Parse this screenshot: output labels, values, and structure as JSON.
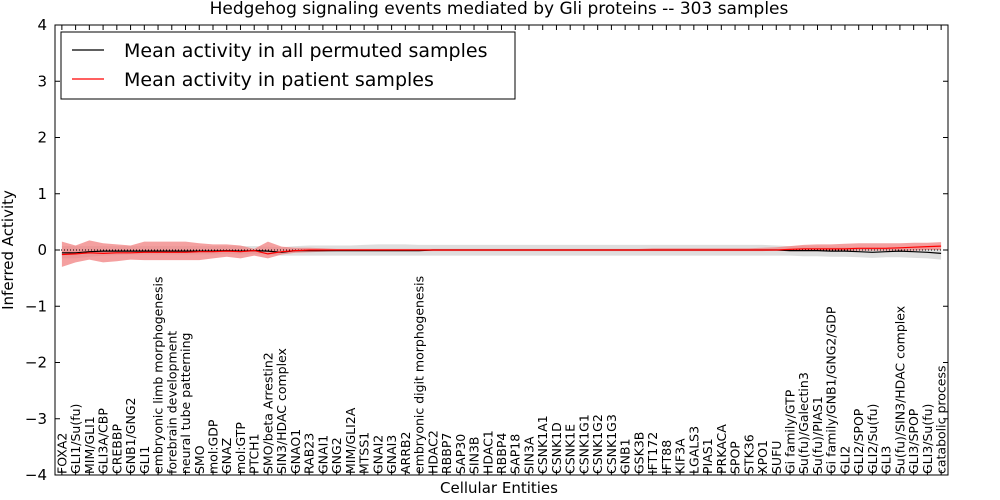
{
  "chart_data": {
    "type": "line",
    "title": "Hedgehog signaling events mediated by Gli proteins -- 303 samples",
    "xlabel": "Cellular Entities",
    "ylabel": "Inferred Activity",
    "ylim": [
      -4,
      4
    ],
    "yticks": [
      "4",
      "3",
      "2",
      "1",
      "0",
      "−1",
      "−2",
      "−3",
      "−4"
    ],
    "ytick_values": [
      4,
      3,
      2,
      1,
      0,
      -1,
      -2,
      -3,
      -4
    ],
    "legend_position": "upper-left",
    "categories": [
      "FOXA2",
      "GLI1/Su(fu)",
      "MIM/GLI1",
      "GLI3A/CBP",
      "CREBBP",
      "GNB1/GNG2",
      "GLI1",
      "embryonic limb morphogenesis",
      "forebrain development",
      "neural tube patterning",
      "SMO",
      "mol:GDP",
      "GNAZ",
      "mol:GTP",
      "PTCH1",
      "SMO/beta Arrestin2",
      "SIN3/HDAC complex",
      "GNAO1",
      "RAB23",
      "GNAI1",
      "GNG2",
      "MIM/GLI2A",
      "MTSS1",
      "GNAI2",
      "GNAI3",
      "ARRB2",
      "embryonic digit morphogenesis",
      "HDAC2",
      "RBBP7",
      "SAP30",
      "SIN3B",
      "HDAC1",
      "RBBP4",
      "SAP18",
      "SIN3A",
      "CSNK1A1",
      "CSNK1D",
      "CSNK1E",
      "CSNK1G1",
      "CSNK1G2",
      "CSNK1G3",
      "GNB1",
      "GSK3B",
      "IFT172",
      "IFT88",
      "KIF3A",
      "LGALS3",
      "PIAS1",
      "PRKACA",
      "SPOP",
      "STK36",
      "XPO1",
      "SUFU",
      "Gi family/GTP",
      "Su(fu)/Galectin3",
      "Su(fu)/PIAS1",
      "Gi family/GNB1/GNG2/GDP",
      "GLI2",
      "GLI2/SPOP",
      "GLI2/Su(fu)",
      "GLI3",
      "Su(fu)/SIN3/HDAC complex",
      "GLI3/SPOP",
      "GLI3/Su(fu)",
      "catabolic process"
    ],
    "series": [
      {
        "name": "Mean activity in all permuted samples",
        "color": "#000000",
        "values": [
          -0.05,
          -0.05,
          -0.03,
          -0.02,
          -0.02,
          -0.02,
          -0.02,
          -0.02,
          -0.02,
          -0.02,
          -0.02,
          -0.02,
          -0.01,
          -0.02,
          -0.01,
          -0.02,
          -0.04,
          -0.01,
          -0.01,
          -0.01,
          -0.01,
          -0.01,
          -0.01,
          -0.01,
          -0.01,
          -0.01,
          -0.01,
          0.0,
          0.0,
          0.0,
          0.0,
          0.0,
          0.0,
          0.0,
          0.0,
          0.0,
          0.0,
          0.0,
          0.0,
          0.0,
          0.0,
          0.0,
          0.0,
          0.0,
          0.0,
          0.0,
          0.0,
          0.0,
          0.0,
          0.0,
          0.0,
          0.0,
          0.0,
          -0.01,
          -0.01,
          -0.01,
          -0.02,
          -0.02,
          -0.03,
          -0.04,
          -0.03,
          -0.02,
          -0.03,
          -0.04,
          -0.06
        ],
        "band_lower": [
          -0.15,
          -0.15,
          -0.12,
          -0.1,
          -0.09,
          -0.08,
          -0.08,
          -0.08,
          -0.08,
          -0.08,
          -0.08,
          -0.08,
          -0.07,
          -0.08,
          -0.07,
          -0.08,
          -0.1,
          -0.1,
          -0.1,
          -0.1,
          -0.1,
          -0.1,
          -0.1,
          -0.1,
          -0.1,
          -0.1,
          -0.1,
          -0.1,
          -0.1,
          -0.1,
          -0.1,
          -0.1,
          -0.1,
          -0.1,
          -0.1,
          -0.1,
          -0.1,
          -0.1,
          -0.1,
          -0.1,
          -0.1,
          -0.1,
          -0.1,
          -0.1,
          -0.1,
          -0.1,
          -0.1,
          -0.1,
          -0.1,
          -0.1,
          -0.1,
          -0.1,
          -0.1,
          -0.1,
          -0.11,
          -0.11,
          -0.12,
          -0.12,
          -0.13,
          -0.14,
          -0.13,
          -0.13,
          -0.14,
          -0.15,
          -0.17
        ],
        "band_upper": [
          0.07,
          0.07,
          0.07,
          0.07,
          0.07,
          0.07,
          0.07,
          0.07,
          0.07,
          0.07,
          0.07,
          0.07,
          0.07,
          0.07,
          0.07,
          0.06,
          0.05,
          0.07,
          0.08,
          0.08,
          0.08,
          0.08,
          0.09,
          0.1,
          0.1,
          0.1,
          0.09,
          0.09,
          0.09,
          0.09,
          0.09,
          0.09,
          0.09,
          0.09,
          0.09,
          0.09,
          0.09,
          0.09,
          0.09,
          0.09,
          0.09,
          0.09,
          0.09,
          0.09,
          0.09,
          0.09,
          0.09,
          0.09,
          0.09,
          0.09,
          0.09,
          0.09,
          0.08,
          0.07,
          0.07,
          0.07,
          0.06,
          0.06,
          0.05,
          0.05,
          0.05,
          0.05,
          0.05,
          0.04,
          0.04
        ]
      },
      {
        "name": "Mean activity in patient samples",
        "color": "#ff0000",
        "values": [
          -0.08,
          -0.07,
          -0.05,
          -0.06,
          -0.05,
          -0.05,
          -0.04,
          -0.04,
          -0.04,
          -0.04,
          -0.03,
          -0.03,
          -0.02,
          -0.03,
          -0.01,
          -0.07,
          -0.03,
          -0.01,
          0.0,
          0.0,
          0.0,
          0.0,
          0.0,
          0.0,
          0.0,
          0.0,
          0.0,
          0.0,
          0.0,
          0.0,
          0.0,
          0.0,
          0.0,
          0.0,
          0.0,
          0.0,
          0.0,
          0.0,
          0.0,
          0.0,
          0.0,
          0.0,
          0.0,
          0.0,
          0.0,
          0.0,
          0.0,
          0.0,
          0.0,
          0.0,
          0.0,
          0.0,
          0.0,
          0.01,
          0.02,
          0.02,
          0.02,
          0.02,
          0.03,
          0.03,
          0.03,
          0.04,
          0.05,
          0.06,
          0.07
        ],
        "band_lower": [
          -0.3,
          -0.22,
          -0.17,
          -0.22,
          -0.2,
          -0.17,
          -0.18,
          -0.18,
          -0.18,
          -0.18,
          -0.18,
          -0.15,
          -0.12,
          -0.15,
          -0.1,
          -0.15,
          -0.08,
          -0.05,
          -0.04,
          -0.03,
          -0.02,
          -0.02,
          -0.02,
          -0.02,
          -0.02,
          -0.02,
          -0.02,
          -0.02,
          -0.02,
          -0.02,
          -0.02,
          -0.02,
          -0.02,
          -0.02,
          -0.02,
          -0.02,
          -0.02,
          -0.02,
          -0.02,
          -0.02,
          -0.02,
          -0.02,
          -0.02,
          -0.02,
          -0.02,
          -0.02,
          -0.02,
          -0.02,
          -0.02,
          -0.02,
          -0.02,
          -0.02,
          -0.01,
          -0.02,
          -0.02,
          -0.02,
          -0.02,
          -0.02,
          -0.01,
          -0.01,
          -0.01,
          -0.01,
          -0.01,
          0.0,
          0.0
        ],
        "band_upper": [
          0.15,
          0.08,
          0.17,
          0.12,
          0.1,
          0.08,
          0.15,
          0.15,
          0.15,
          0.15,
          0.12,
          0.1,
          0.1,
          0.08,
          0.02,
          0.15,
          0.06,
          0.04,
          0.04,
          0.03,
          0.02,
          0.02,
          0.02,
          0.02,
          0.02,
          0.02,
          0.02,
          0.02,
          0.02,
          0.02,
          0.02,
          0.02,
          0.02,
          0.02,
          0.02,
          0.02,
          0.02,
          0.02,
          0.02,
          0.02,
          0.02,
          0.02,
          0.02,
          0.03,
          0.03,
          0.03,
          0.03,
          0.03,
          0.03,
          0.03,
          0.03,
          0.04,
          0.05,
          0.07,
          0.09,
          0.1,
          0.1,
          0.11,
          0.12,
          0.12,
          0.12,
          0.12,
          0.13,
          0.13,
          0.14
        ]
      }
    ],
    "colors": {
      "permuted_band": "#cccccc",
      "patient_band": "#f08080",
      "zero_line": "#000000"
    }
  }
}
